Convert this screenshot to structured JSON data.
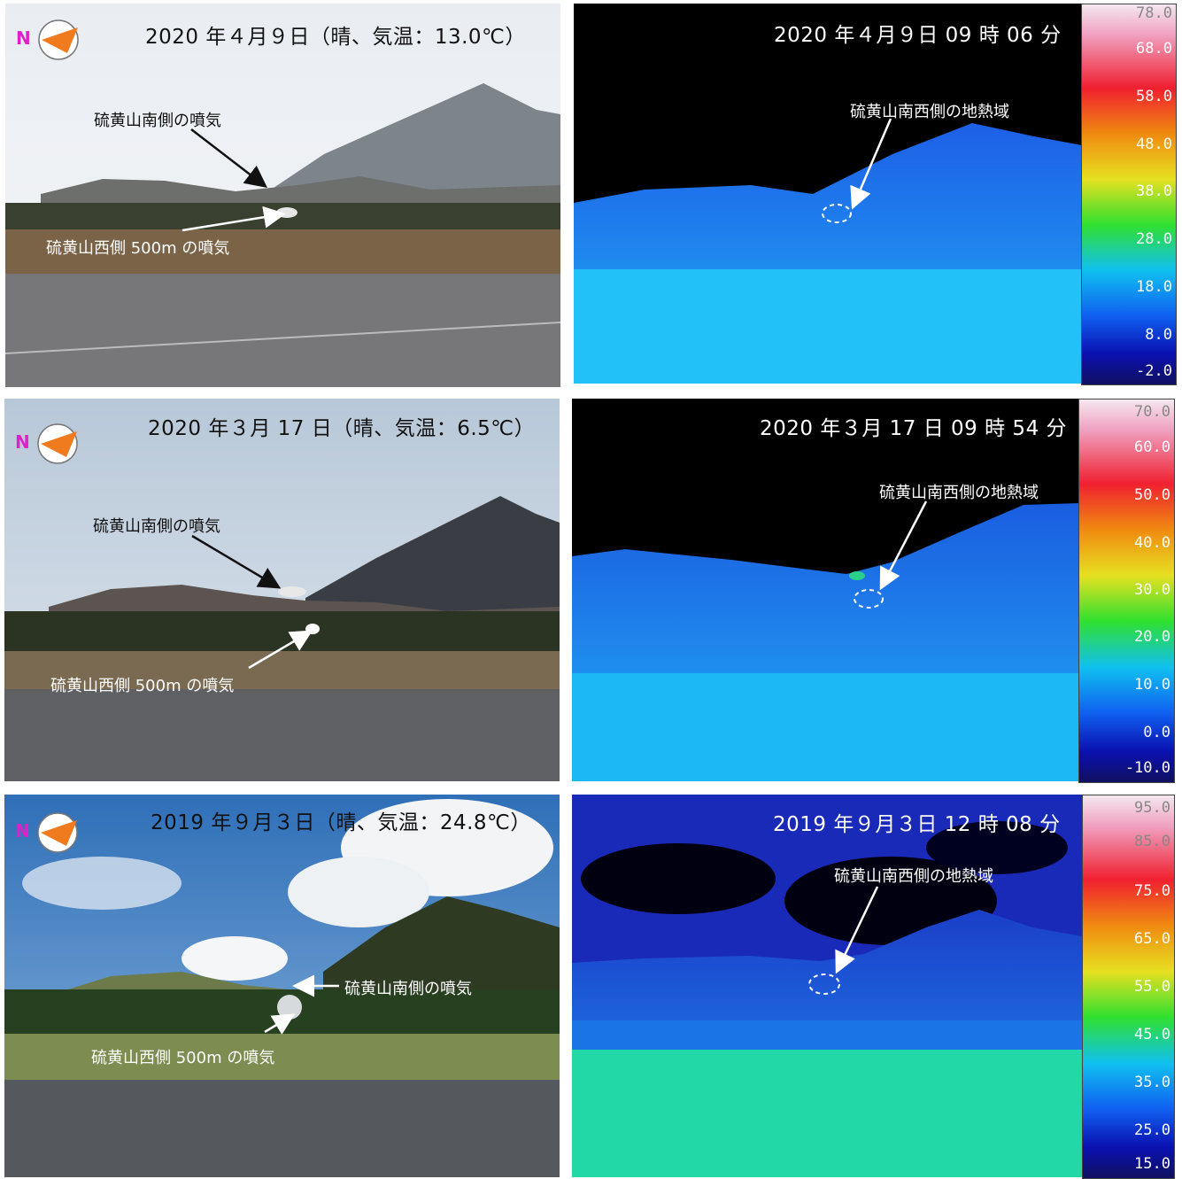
{
  "rows": [
    {
      "photo": {
        "title": "2020 年４月９日（晴、気温：13.0℃）",
        "label_south": "硫黄山南側の噴気",
        "label_west": "硫黄山西側 500m の噴気"
      },
      "thermal": {
        "title": "2020 年４月９日 09 時 06 分",
        "label": "硫黄山南西側の地熱域",
        "scale": [
          "78.0",
          "68.0",
          "58.0",
          "48.0",
          "38.0",
          "28.0",
          "18.0",
          "8.0",
          "-2.0"
        ]
      }
    },
    {
      "photo": {
        "title": "2020 年３月 17 日（晴、気温：6.5℃）",
        "label_south": "硫黄山南側の噴気",
        "label_west": "硫黄山西側 500m の噴気"
      },
      "thermal": {
        "title": "2020 年３月 17 日 09 時 54 分",
        "label": "硫黄山南西側の地熱域",
        "scale": [
          "70.0",
          "60.0",
          "50.0",
          "40.0",
          "30.0",
          "20.0",
          "10.0",
          "0.0",
          "-10.0"
        ]
      }
    },
    {
      "photo": {
        "title": "2019 年９月３日（晴、気温：24.8℃）",
        "label_south": "硫黄山南側の噴気",
        "label_west": "硫黄山西側 500m の噴気"
      },
      "thermal": {
        "title": "2019 年９月３日 12 時 08 分",
        "label": "硫黄山南西側の地熱域",
        "scale": [
          "95.0",
          "85.0",
          "75.0",
          "65.0",
          "55.0",
          "45.0",
          "35.0",
          "25.0",
          "15.0"
        ]
      }
    }
  ],
  "compass_icon": "north-arrow-compass-icon",
  "colors": {
    "compass_orange": "#f07a1e",
    "compass_magenta": "#e020c8"
  }
}
